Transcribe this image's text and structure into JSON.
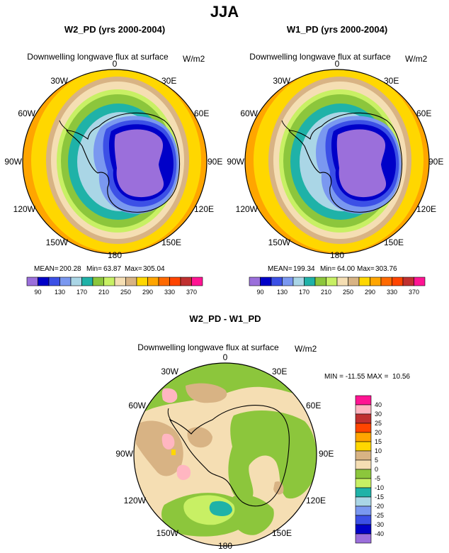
{
  "figure": {
    "title": "JJA"
  },
  "chart_data": [
    {
      "type": "heatmap",
      "projection": "south-polar-stereographic",
      "title": "W2_PD (yrs 2000-2004)",
      "subtitle": "Downwelling longwave flux at surface",
      "units": "W/m2",
      "longitude_labels": [
        "0",
        "30E",
        "60E",
        "90E",
        "120E",
        "150E",
        "180",
        "150W",
        "120W",
        "90W",
        "60W",
        "30W"
      ],
      "stats": {
        "mean_label": "MEAN=",
        "mean": "200.28",
        "min_label": "Min=",
        "min": "63.87",
        "max_label": "Max=",
        "max": "305.04"
      },
      "colorbar": {
        "orientation": "horizontal",
        "colors": [
          "#9b6fdb",
          "#0000c8",
          "#3c50e6",
          "#7a98f0",
          "#aad6e6",
          "#1fb2a8",
          "#8cc63c",
          "#c8f064",
          "#f5deb3",
          "#d8b384",
          "#ffd700",
          "#ffa500",
          "#ff6a00",
          "#ff4500",
          "#c03030",
          "#ff1493"
        ],
        "tick_labels": [
          "90",
          "130",
          "170",
          "210",
          "250",
          "290",
          "330",
          "370"
        ]
      }
    },
    {
      "type": "heatmap",
      "projection": "south-polar-stereographic",
      "title": "W1_PD (yrs 2000-2004)",
      "subtitle": "Downwelling longwave flux at surface",
      "units": "W/m2",
      "longitude_labels": [
        "0",
        "30E",
        "60E",
        "90E",
        "120E",
        "150E",
        "180",
        "150W",
        "120W",
        "90W",
        "60W",
        "30W"
      ],
      "stats": {
        "mean_label": "MEAN=",
        "mean": "199.34",
        "min_label": "Min=",
        "min": "64.00",
        "max_label": "Max=",
        "max": "303.76"
      },
      "colorbar": {
        "orientation": "horizontal",
        "colors": [
          "#9b6fdb",
          "#0000c8",
          "#3c50e6",
          "#7a98f0",
          "#aad6e6",
          "#1fb2a8",
          "#8cc63c",
          "#c8f064",
          "#f5deb3",
          "#d8b384",
          "#ffd700",
          "#ffa500",
          "#ff6a00",
          "#ff4500",
          "#c03030",
          "#ff1493"
        ],
        "tick_labels": [
          "90",
          "130",
          "170",
          "210",
          "250",
          "290",
          "330",
          "370"
        ]
      }
    },
    {
      "type": "heatmap",
      "projection": "south-polar-stereographic",
      "title": "W2_PD - W1_PD",
      "subtitle": "Downwelling longwave flux at surface",
      "units": "W/m2",
      "longitude_labels": [
        "0",
        "30E",
        "60E",
        "90E",
        "120E",
        "150E",
        "180",
        "150W",
        "120W",
        "90W",
        "60W",
        "30W"
      ],
      "stats_text": "MIN = -11.55 MAX =  10.56",
      "colorbar": {
        "orientation": "vertical",
        "colors": [
          "#ff1493",
          "#ffb6c1",
          "#c03030",
          "#ff4500",
          "#ffa500",
          "#ffd700",
          "#d8b384",
          "#f5deb3",
          "#8cc63c",
          "#c8f064",
          "#1fb2a8",
          "#aad6e6",
          "#7a98f0",
          "#3c50e6",
          "#0000c8",
          "#9b6fdb"
        ],
        "tick_labels": [
          "40",
          "30",
          "25",
          "20",
          "15",
          "10",
          "5",
          "0",
          "-5",
          "-10",
          "-15",
          "-20",
          "-25",
          "-30",
          "-40"
        ]
      }
    }
  ]
}
